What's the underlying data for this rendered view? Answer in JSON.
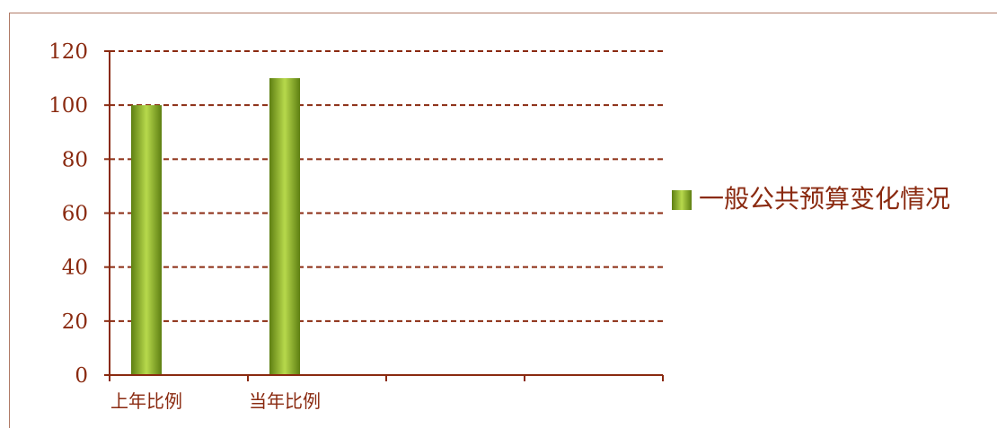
{
  "chart_data": {
    "type": "bar",
    "categories": [
      "上年比例",
      "当年比例",
      "",
      ""
    ],
    "series": [
      {
        "name": "一般公共预算变化情况",
        "values": [
          100,
          110,
          null,
          null
        ]
      }
    ],
    "yticks": [
      "0",
      "20",
      "40",
      "60",
      "80",
      "100",
      "120"
    ],
    "ylim": [
      0,
      120
    ],
    "grid": true,
    "grid_style": "dashed",
    "legend_position": "right",
    "colors": {
      "text": "#8a2a10",
      "axis": "#8a2a10",
      "grid": "#8a2a10",
      "bar_dark": "#5e7f12",
      "bar_light": "#b7d94c",
      "frame": "#b07a66"
    }
  }
}
